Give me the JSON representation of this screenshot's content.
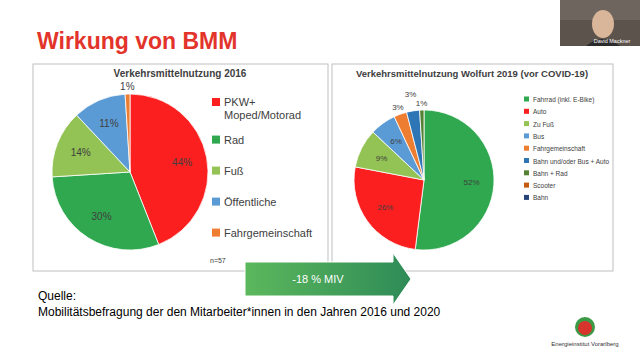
{
  "slide": {
    "title": "Wirkung von BMM",
    "speaker": "David Mackner",
    "annotation": "-18 % MIV",
    "source_heading": "Quelle:",
    "source": "Mobilitätsbefragung der den Mitarbeiter*innen in den Jahren 2016 und 2020",
    "logo": "Energieinstitut Vorarlberg"
  },
  "chart_data": [
    {
      "type": "pie",
      "title": "Verkehrsmittelnutzung 2016",
      "categories": [
        "PKW+ Moped/Motorad",
        "Rad",
        "Fuß",
        "Öffentliche",
        "Fahrgemeinschaft"
      ],
      "values": [
        44,
        30,
        14,
        11,
        1
      ],
      "value_labels": [
        "44%",
        "30%",
        "14%",
        "11%",
        "1%"
      ],
      "colors": [
        "#fb1f1f",
        "#2fa84f",
        "#93c354",
        "#5b9bd5",
        "#ed7d31"
      ],
      "data_labels": true,
      "legend": "right",
      "annotation": "n=57"
    },
    {
      "type": "pie",
      "title": "Verkehrsmittelnutzung Wolfurt 2019 (vor COVID-19)",
      "categories": [
        "Fahrrad (inkl. E-Bike)",
        "Auto",
        "Zu Fuß",
        "Bus",
        "Fahrgemeinschaft",
        "Bahn und/oder Bus + Auto",
        "Bahn + Rad",
        "Scooter",
        "Bahn"
      ],
      "values": [
        52,
        26,
        9,
        6,
        3,
        3,
        1,
        0,
        0
      ],
      "value_labels": [
        "52%",
        "26%",
        "9%",
        "6%",
        "3%",
        "3%",
        "1%",
        null,
        null
      ],
      "colors": [
        "#2fa84f",
        "#fb1f1f",
        "#93c354",
        "#5b9bd5",
        "#ed7d31",
        "#2e75b6",
        "#548235",
        "#c55a11",
        "#264478"
      ],
      "data_labels": true,
      "legend": "right"
    }
  ]
}
